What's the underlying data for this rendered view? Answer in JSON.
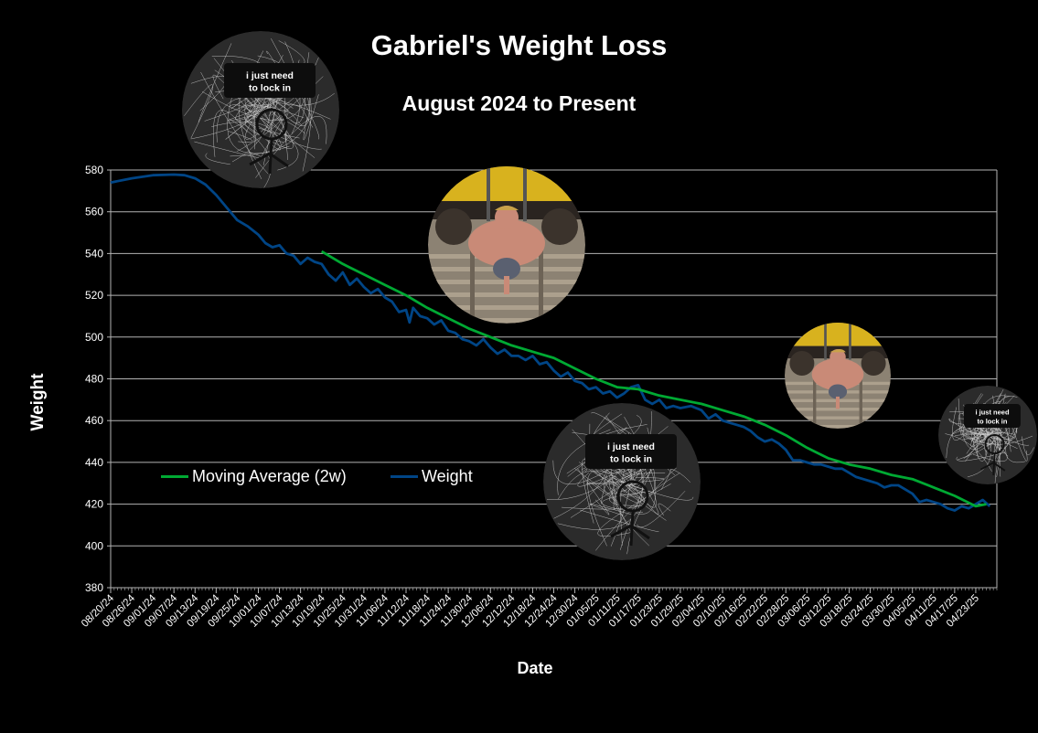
{
  "title": "Gabriel's Weight Loss",
  "subtitle": "August 2024 to Present",
  "chart_data": {
    "type": "line",
    "title": "Gabriel's Weight Loss",
    "subtitle": "August 2024 to Present",
    "xlabel": "Date",
    "ylabel": "Weight",
    "ylim": [
      380,
      580
    ],
    "yticks": [
      380,
      400,
      420,
      440,
      460,
      480,
      500,
      520,
      540,
      560,
      580
    ],
    "xlim": [
      "2024-08-20",
      "2025-04-29"
    ],
    "xticks": [
      "08/20/24",
      "08/26/24",
      "09/01/24",
      "09/07/24",
      "09/13/24",
      "09/19/24",
      "09/25/24",
      "10/01/24",
      "10/07/24",
      "10/13/24",
      "10/19/24",
      "10/25/24",
      "10/31/24",
      "11/06/24",
      "11/12/24",
      "11/18/24",
      "11/24/24",
      "11/30/24",
      "12/06/24",
      "12/12/24",
      "12/18/24",
      "12/24/24",
      "12/30/24",
      "01/05/25",
      "01/11/25",
      "01/17/25",
      "01/23/25",
      "01/29/25",
      "02/04/25",
      "02/10/25",
      "02/16/25",
      "02/22/25",
      "02/28/25",
      "03/06/25",
      "03/12/25",
      "03/18/25",
      "03/24/25",
      "03/30/25",
      "04/05/25",
      "04/11/25",
      "04/17/25",
      "04/23/25"
    ],
    "grid": true,
    "legend_position": "lower-left",
    "series": [
      {
        "name": "Moving Average (2w)",
        "color": "#00a933",
        "points": [
          [
            "2024-10-19",
            541
          ],
          [
            "2024-10-25",
            535
          ],
          [
            "2024-10-31",
            530
          ],
          [
            "2024-11-06",
            525
          ],
          [
            "2024-11-12",
            520
          ],
          [
            "2024-11-18",
            514
          ],
          [
            "2024-11-24",
            509
          ],
          [
            "2024-11-30",
            504
          ],
          [
            "2024-12-06",
            500
          ],
          [
            "2024-12-12",
            496
          ],
          [
            "2024-12-18",
            493
          ],
          [
            "2024-12-24",
            490
          ],
          [
            "2024-12-30",
            485
          ],
          [
            "2025-01-05",
            480
          ],
          [
            "2025-01-11",
            476
          ],
          [
            "2025-01-17",
            475
          ],
          [
            "2025-01-23",
            472
          ],
          [
            "2025-01-29",
            470
          ],
          [
            "2025-02-04",
            468
          ],
          [
            "2025-02-10",
            465
          ],
          [
            "2025-02-16",
            462
          ],
          [
            "2025-02-22",
            458
          ],
          [
            "2025-02-28",
            453
          ],
          [
            "2025-03-06",
            447
          ],
          [
            "2025-03-12",
            442
          ],
          [
            "2025-03-18",
            439
          ],
          [
            "2025-03-24",
            437
          ],
          [
            "2025-03-30",
            434
          ],
          [
            "2025-04-05",
            432
          ],
          [
            "2025-04-11",
            428
          ],
          [
            "2025-04-17",
            424
          ],
          [
            "2025-04-23",
            419
          ],
          [
            "2025-04-26",
            420
          ]
        ]
      },
      {
        "name": "Weight",
        "color": "#004586",
        "points": [
          [
            "2024-08-20",
            574
          ],
          [
            "2024-08-26",
            576
          ],
          [
            "2024-09-01",
            577.5
          ],
          [
            "2024-09-07",
            577.8
          ],
          [
            "2024-09-10",
            577.5
          ],
          [
            "2024-09-13",
            576
          ],
          [
            "2024-09-16",
            573
          ],
          [
            "2024-09-19",
            568
          ],
          [
            "2024-09-22",
            562
          ],
          [
            "2024-09-25",
            556
          ],
          [
            "2024-09-28",
            553
          ],
          [
            "2024-10-01",
            549
          ],
          [
            "2024-10-03",
            545
          ],
          [
            "2024-10-05",
            543
          ],
          [
            "2024-10-07",
            544
          ],
          [
            "2024-10-09",
            540
          ],
          [
            "2024-10-11",
            539
          ],
          [
            "2024-10-13",
            535
          ],
          [
            "2024-10-15",
            538
          ],
          [
            "2024-10-17",
            536
          ],
          [
            "2024-10-19",
            535
          ],
          [
            "2024-10-21",
            530
          ],
          [
            "2024-10-23",
            527
          ],
          [
            "2024-10-25",
            531
          ],
          [
            "2024-10-27",
            525
          ],
          [
            "2024-10-29",
            528
          ],
          [
            "2024-10-31",
            524
          ],
          [
            "2024-11-02",
            521
          ],
          [
            "2024-11-04",
            523
          ],
          [
            "2024-11-06",
            519
          ],
          [
            "2024-11-08",
            517
          ],
          [
            "2024-11-10",
            512
          ],
          [
            "2024-11-12",
            513
          ],
          [
            "2024-11-13",
            507
          ],
          [
            "2024-11-14",
            514
          ],
          [
            "2024-11-16",
            510
          ],
          [
            "2024-11-18",
            509
          ],
          [
            "2024-11-20",
            506
          ],
          [
            "2024-11-22",
            508
          ],
          [
            "2024-11-24",
            503
          ],
          [
            "2024-11-26",
            502
          ],
          [
            "2024-11-28",
            499
          ],
          [
            "2024-11-30",
            498
          ],
          [
            "2024-12-02",
            496
          ],
          [
            "2024-12-04",
            499
          ],
          [
            "2024-12-06",
            495
          ],
          [
            "2024-12-08",
            492
          ],
          [
            "2024-12-10",
            494
          ],
          [
            "2024-12-12",
            491
          ],
          [
            "2024-12-14",
            491
          ],
          [
            "2024-12-16",
            489
          ],
          [
            "2024-12-18",
            491
          ],
          [
            "2024-12-20",
            487
          ],
          [
            "2024-12-22",
            488
          ],
          [
            "2024-12-24",
            484
          ],
          [
            "2024-12-26",
            481
          ],
          [
            "2024-12-28",
            483
          ],
          [
            "2024-12-30",
            479
          ],
          [
            "2025-01-01",
            478
          ],
          [
            "2025-01-03",
            475
          ],
          [
            "2025-01-05",
            476
          ],
          [
            "2025-01-07",
            473
          ],
          [
            "2025-01-09",
            474
          ],
          [
            "2025-01-11",
            471
          ],
          [
            "2025-01-13",
            473
          ],
          [
            "2025-01-15",
            476
          ],
          [
            "2025-01-17",
            477
          ],
          [
            "2025-01-19",
            470
          ],
          [
            "2025-01-21",
            468
          ],
          [
            "2025-01-23",
            470
          ],
          [
            "2025-01-25",
            466
          ],
          [
            "2025-01-27",
            467
          ],
          [
            "2025-01-29",
            466
          ],
          [
            "2025-02-01",
            467
          ],
          [
            "2025-02-04",
            465
          ],
          [
            "2025-02-06",
            461
          ],
          [
            "2025-02-08",
            463
          ],
          [
            "2025-02-10",
            460
          ],
          [
            "2025-02-12",
            459
          ],
          [
            "2025-02-14",
            458
          ],
          [
            "2025-02-16",
            457
          ],
          [
            "2025-02-18",
            455
          ],
          [
            "2025-02-20",
            452
          ],
          [
            "2025-02-22",
            450
          ],
          [
            "2025-02-24",
            451
          ],
          [
            "2025-02-26",
            449
          ],
          [
            "2025-02-28",
            446
          ],
          [
            "2025-03-02",
            441
          ],
          [
            "2025-03-04",
            441
          ],
          [
            "2025-03-06",
            440
          ],
          [
            "2025-03-08",
            439
          ],
          [
            "2025-03-10",
            439
          ],
          [
            "2025-03-12",
            438
          ],
          [
            "2025-03-14",
            437
          ],
          [
            "2025-03-16",
            437
          ],
          [
            "2025-03-18",
            435
          ],
          [
            "2025-03-20",
            433
          ],
          [
            "2025-03-22",
            432
          ],
          [
            "2025-03-24",
            431
          ],
          [
            "2025-03-26",
            430
          ],
          [
            "2025-03-28",
            428
          ],
          [
            "2025-03-30",
            429
          ],
          [
            "2025-04-01",
            429
          ],
          [
            "2025-04-03",
            427
          ],
          [
            "2025-04-05",
            425
          ],
          [
            "2025-04-07",
            421
          ],
          [
            "2025-04-09",
            422
          ],
          [
            "2025-04-11",
            421
          ],
          [
            "2025-04-13",
            420
          ],
          [
            "2025-04-15",
            418
          ],
          [
            "2025-04-17",
            417
          ],
          [
            "2025-04-19",
            419
          ],
          [
            "2025-04-21",
            418
          ],
          [
            "2025-04-23",
            420
          ],
          [
            "2025-04-25",
            422
          ],
          [
            "2025-04-27",
            419
          ]
        ]
      }
    ],
    "decorations": [
      {
        "type": "sticker-scribble",
        "caption": "i just need to lock in"
      },
      {
        "type": "sticker-photo"
      },
      {
        "type": "sticker-scribble",
        "caption": "i just need to lock in"
      },
      {
        "type": "sticker-photo"
      },
      {
        "type": "sticker-scribble",
        "caption": "i just need to lock in"
      }
    ]
  }
}
